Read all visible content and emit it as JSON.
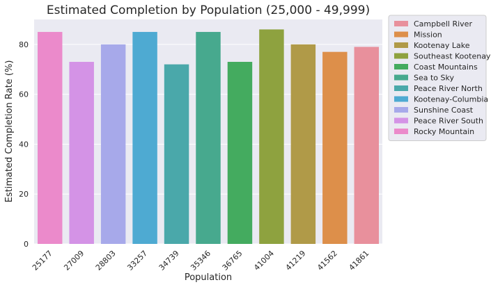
{
  "chart_data": {
    "type": "bar",
    "title": "Estimated Completion by Population (25,000 - 49,999)",
    "xlabel": "Population",
    "ylabel": "Estimated Completion Rate (%)",
    "ylim": [
      0,
      90
    ],
    "yticks": [
      0,
      20,
      40,
      60,
      80
    ],
    "grid": true,
    "legend_position": "outside-right",
    "categories": [
      "25177",
      "27009",
      "28803",
      "33257",
      "34739",
      "35346",
      "36765",
      "41004",
      "41219",
      "41562",
      "41861"
    ],
    "values": [
      85,
      73,
      80,
      85,
      72,
      85,
      73,
      86,
      80,
      77,
      79
    ],
    "bar_regions": [
      "Rocky Mountain",
      "Peace River South",
      "Sunshine Coast",
      "Kootenay-Columbia",
      "Peace River North",
      "Sea to Sky",
      "Coast Mountains",
      "Southeast Kootenay",
      "Kootenay Lake",
      "Mission",
      "Campbell River"
    ],
    "legend": [
      {
        "name": "Campbell River",
        "color": "#e8909c"
      },
      {
        "name": "Mission",
        "color": "#dd8f4a"
      },
      {
        "name": "Kootenay Lake",
        "color": "#b09a48"
      },
      {
        "name": "Southeast Kootenay",
        "color": "#8ea23f"
      },
      {
        "name": "Coast Mountains",
        "color": "#44ab5f"
      },
      {
        "name": "Sea to Sky",
        "color": "#47a98e"
      },
      {
        "name": "Peace River North",
        "color": "#4aa8aa"
      },
      {
        "name": "Kootenay-Columbia",
        "color": "#4eaad2"
      },
      {
        "name": "Sunshine Coast",
        "color": "#a7a9ea"
      },
      {
        "name": "Peace River South",
        "color": "#d493e6"
      },
      {
        "name": "Rocky Mountain",
        "color": "#eb8acb"
      }
    ]
  }
}
